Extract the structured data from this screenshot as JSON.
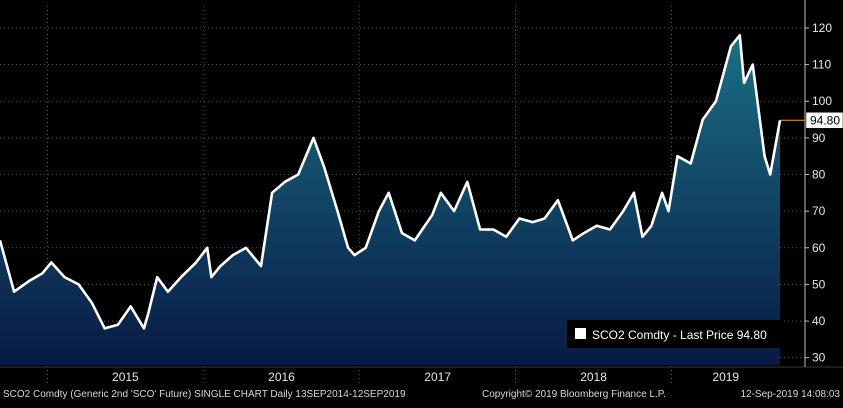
{
  "chart_data": {
    "type": "area",
    "ticker": "SCO2 Comdty",
    "legend": "SCO2 Comdty - Last Price 94.80",
    "legend_position": "bottom-right",
    "last_price": 94.8,
    "last_price_label": "94.80",
    "ylim": [
      28,
      126
    ],
    "y_ticks": [
      30,
      40,
      50,
      60,
      70,
      80,
      90,
      100,
      110,
      120
    ],
    "y_tick_labels": [
      "30",
      "40",
      "50",
      "60",
      "70",
      "80",
      "90",
      "100",
      "110",
      "120"
    ],
    "x_year_labels": [
      "2015",
      "2016",
      "2017",
      "2018",
      "2019"
    ],
    "grid": true,
    "line_color": "#ffffff",
    "fill_top_color": "#1b6f86",
    "fill_bottom_color": "#081a44",
    "series": [
      {
        "x": [
          "2014-09-12",
          "2014-10-15",
          "2014-11-20",
          "2014-12-20",
          "2015-01-10",
          "2015-02-10",
          "2015-03-15",
          "2015-04-15",
          "2015-05-15",
          "2015-06-15",
          "2015-07-15",
          "2015-08-15",
          "2015-08-25",
          "2015-09-15",
          "2015-10-10",
          "2015-11-10",
          "2015-12-15",
          "2016-01-10",
          "2016-01-20",
          "2016-02-10",
          "2016-03-10",
          "2016-04-10",
          "2016-05-15",
          "2016-06-10",
          "2016-07-10",
          "2016-08-10",
          "2016-09-15",
          "2016-10-10",
          "2016-11-10",
          "2016-12-05",
          "2016-12-20",
          "2017-01-15",
          "2017-02-15",
          "2017-03-10",
          "2017-04-10",
          "2017-05-10",
          "2017-06-20",
          "2017-07-10",
          "2017-08-10",
          "2017-09-10",
          "2017-10-10",
          "2017-11-10",
          "2017-12-10",
          "2018-01-10",
          "2018-02-10",
          "2018-03-10",
          "2018-04-10",
          "2018-05-15",
          "2018-06-10",
          "2018-07-10",
          "2018-08-10",
          "2018-09-10",
          "2018-10-05",
          "2018-10-25",
          "2018-11-15",
          "2018-12-10",
          "2018-12-25",
          "2019-01-15",
          "2019-02-15",
          "2019-03-15",
          "2019-04-15",
          "2019-05-20",
          "2019-06-10",
          "2019-06-20",
          "2019-07-10",
          "2019-08-07",
          "2019-08-20",
          "2019-09-12"
        ],
        "values": [
          62,
          48,
          51,
          53,
          56,
          52,
          50,
          45,
          38,
          39,
          44,
          38,
          42,
          52,
          48,
          52,
          56,
          60,
          52,
          55,
          58,
          60,
          55,
          75,
          78,
          80,
          90,
          82,
          70,
          60,
          58,
          60,
          70,
          75,
          64,
          62,
          69,
          75,
          70,
          78,
          65,
          65,
          63,
          68,
          67,
          68,
          73,
          62,
          64,
          66,
          65,
          70,
          75,
          63,
          66,
          75,
          70,
          85,
          83,
          95,
          100,
          115,
          118,
          105,
          110,
          85,
          80,
          94.8
        ]
      }
    ]
  },
  "footer": {
    "left": "SCO2 Comdty (Generic 2nd 'SCO' Future) SINGLE CHART  Daily 13SEP2014-12SEP2019",
    "center": "Copyright© 2019 Bloomberg Finance L.P.",
    "right": "12-Sep-2019 14:08:03"
  }
}
